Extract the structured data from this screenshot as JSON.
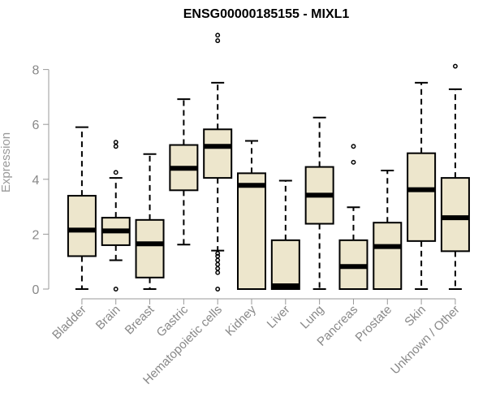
{
  "chart_data": {
    "type": "box",
    "title": "ENSG00000185155 - MIXL1",
    "xlabel": "",
    "ylabel": "Expression",
    "ylim": [
      0,
      9.3
    ],
    "yticks": [
      0,
      2,
      4,
      6,
      8
    ],
    "grid": false,
    "categories": [
      "Bladder",
      "Brain",
      "Breast",
      "Gastric",
      "Hematopoietic cells",
      "Kidney",
      "Liver",
      "Lung",
      "Pancreas",
      "Prostate",
      "Skin",
      "Unknown / Other"
    ],
    "boxes": [
      {
        "whislo": 0.0,
        "q1": 1.2,
        "med": 2.15,
        "q3": 3.4,
        "whishi": 5.9,
        "fliers": []
      },
      {
        "whislo": 1.05,
        "q1": 1.6,
        "med": 2.12,
        "q3": 2.6,
        "whishi": 4.05,
        "fliers": [
          0.0,
          4.25,
          5.2,
          5.35
        ]
      },
      {
        "whislo": 0.0,
        "q1": 0.42,
        "med": 1.65,
        "q3": 2.52,
        "whishi": 4.92,
        "fliers": []
      },
      {
        "whislo": 1.62,
        "q1": 3.6,
        "med": 4.4,
        "q3": 5.25,
        "whishi": 6.92,
        "fliers": []
      },
      {
        "whislo": 1.4,
        "q1": 4.05,
        "med": 5.2,
        "q3": 5.82,
        "whishi": 7.52,
        "fliers": [
          0.0,
          0.6,
          0.75,
          0.9,
          1.05,
          1.2,
          1.3,
          9.05,
          9.25
        ]
      },
      {
        "whislo": 0.0,
        "q1": 0.0,
        "med": 3.78,
        "q3": 4.22,
        "whishi": 5.4,
        "fliers": []
      },
      {
        "whislo": 0.0,
        "q1": 0.0,
        "med": 0.12,
        "q3": 1.78,
        "whishi": 3.95,
        "fliers": []
      },
      {
        "whislo": 0.0,
        "q1": 2.38,
        "med": 3.42,
        "q3": 4.45,
        "whishi": 6.25,
        "fliers": []
      },
      {
        "whislo": 0.0,
        "q1": 0.0,
        "med": 0.82,
        "q3": 1.78,
        "whishi": 2.98,
        "fliers": [
          4.62,
          5.2
        ]
      },
      {
        "whislo": 0.0,
        "q1": 0.0,
        "med": 1.55,
        "q3": 2.42,
        "whishi": 4.32,
        "fliers": []
      },
      {
        "whislo": 0.0,
        "q1": 1.75,
        "med": 3.62,
        "q3": 4.95,
        "whishi": 7.52,
        "fliers": []
      },
      {
        "whislo": 0.0,
        "q1": 1.38,
        "med": 2.6,
        "q3": 4.05,
        "whishi": 7.28,
        "fliers": [
          8.12
        ]
      }
    ],
    "colors": {
      "box_fill": "#ede6cc",
      "line": "#000000",
      "axis": "#999999",
      "tick_label": "#888888",
      "title": "#000000"
    }
  }
}
